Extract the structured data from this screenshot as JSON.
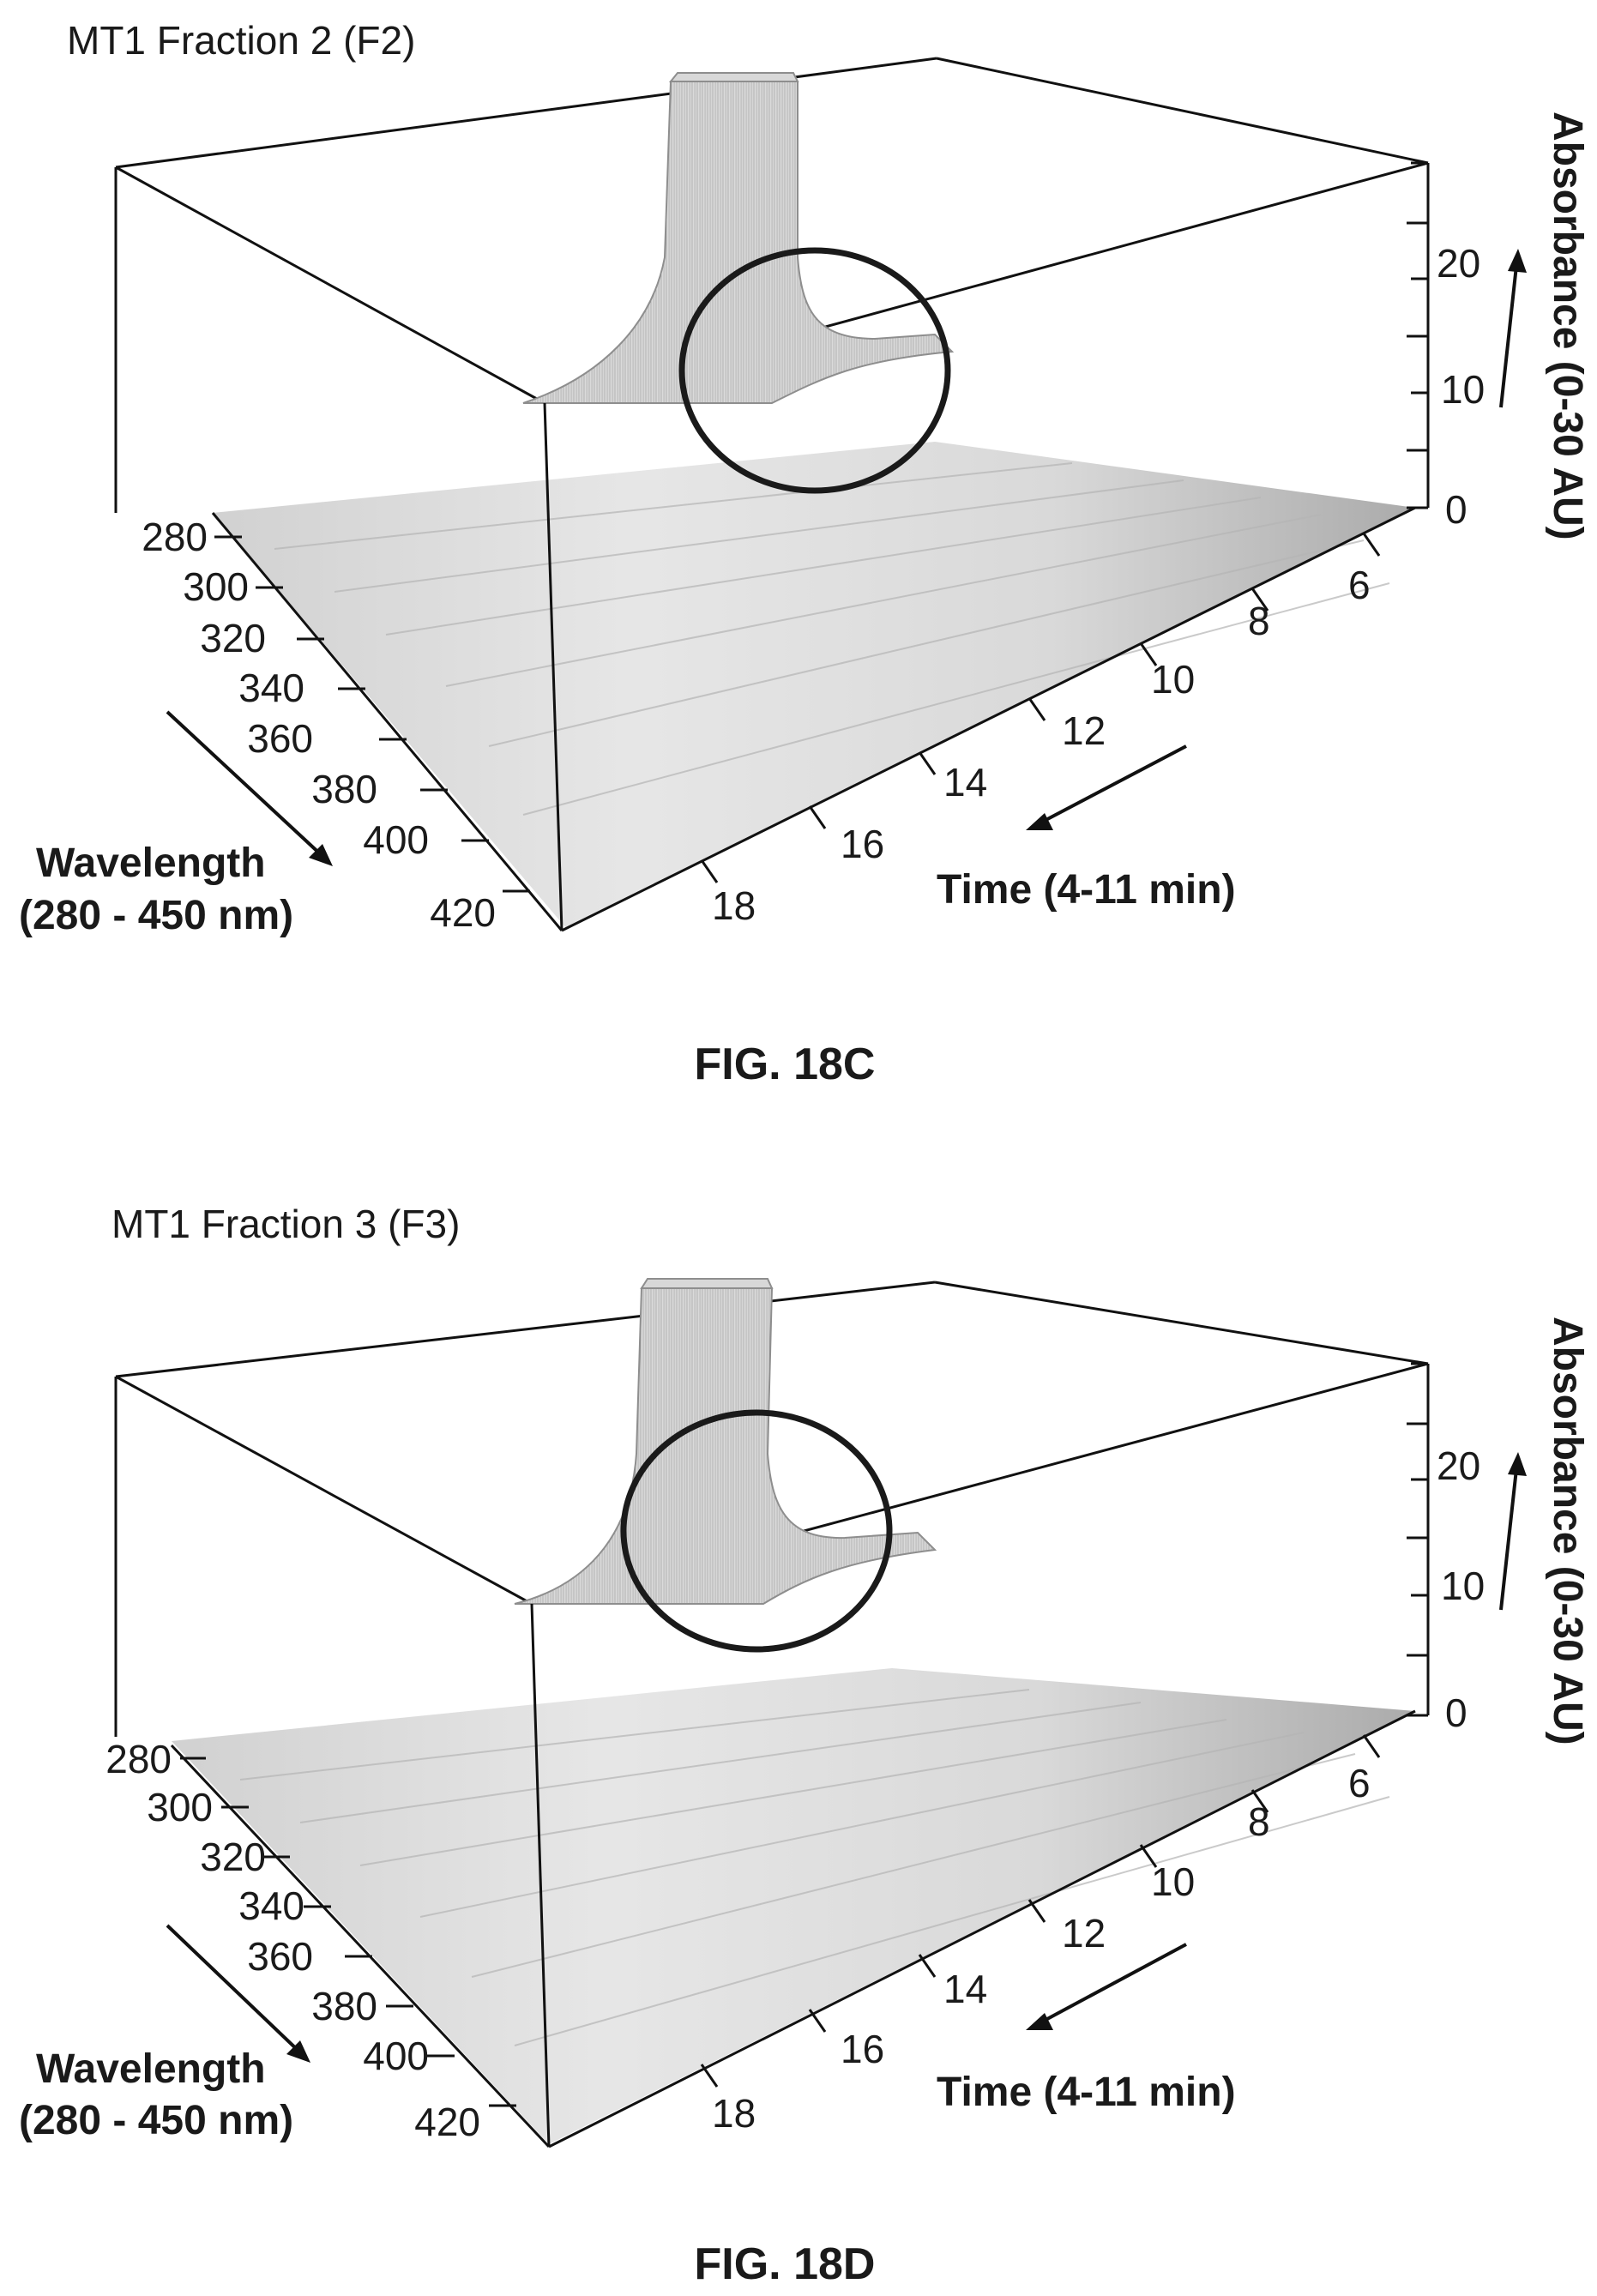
{
  "chart_data": [
    {
      "type": "surface",
      "title": "MT1 Fraction 2 (F2)",
      "caption": "FIG. 18C",
      "x_axis": {
        "label_line1": "Wavelength",
        "label_line2": "(280 - 450 nm)",
        "ticks": [
          "280",
          "300",
          "320",
          "340",
          "360",
          "380",
          "400",
          "420"
        ]
      },
      "y_axis": {
        "label": "Time (4-11 min)",
        "ticks": [
          "6",
          "8",
          "10",
          "12",
          "14",
          "16",
          "18"
        ]
      },
      "z_axis": {
        "label": "Absorbance (0-30 AU)",
        "ticks": [
          "0",
          "10",
          "20"
        ],
        "range": [
          0,
          30
        ]
      },
      "peak": {
        "wavelength": 280,
        "time": 10.8,
        "absorbance": 30
      },
      "annotation": "circle"
    },
    {
      "type": "surface",
      "title": "MT1 Fraction 3 (F3)",
      "caption": "FIG. 18D",
      "x_axis": {
        "label_line1": "Wavelength",
        "label_line2": "(280 - 450 nm)",
        "ticks": [
          "280",
          "300",
          "320",
          "340",
          "360",
          "380",
          "400",
          "420"
        ]
      },
      "y_axis": {
        "label": "Time (4-11 min)",
        "ticks": [
          "6",
          "8",
          "10",
          "12",
          "14",
          "16",
          "18"
        ]
      },
      "z_axis": {
        "label": "Absorbance (0-30 AU)",
        "ticks": [
          "0",
          "10",
          "20"
        ],
        "range": [
          0,
          30
        ]
      },
      "peak": {
        "wavelength": 280,
        "time": 11.3,
        "absorbance": 30
      },
      "annotation": "circle"
    }
  ]
}
